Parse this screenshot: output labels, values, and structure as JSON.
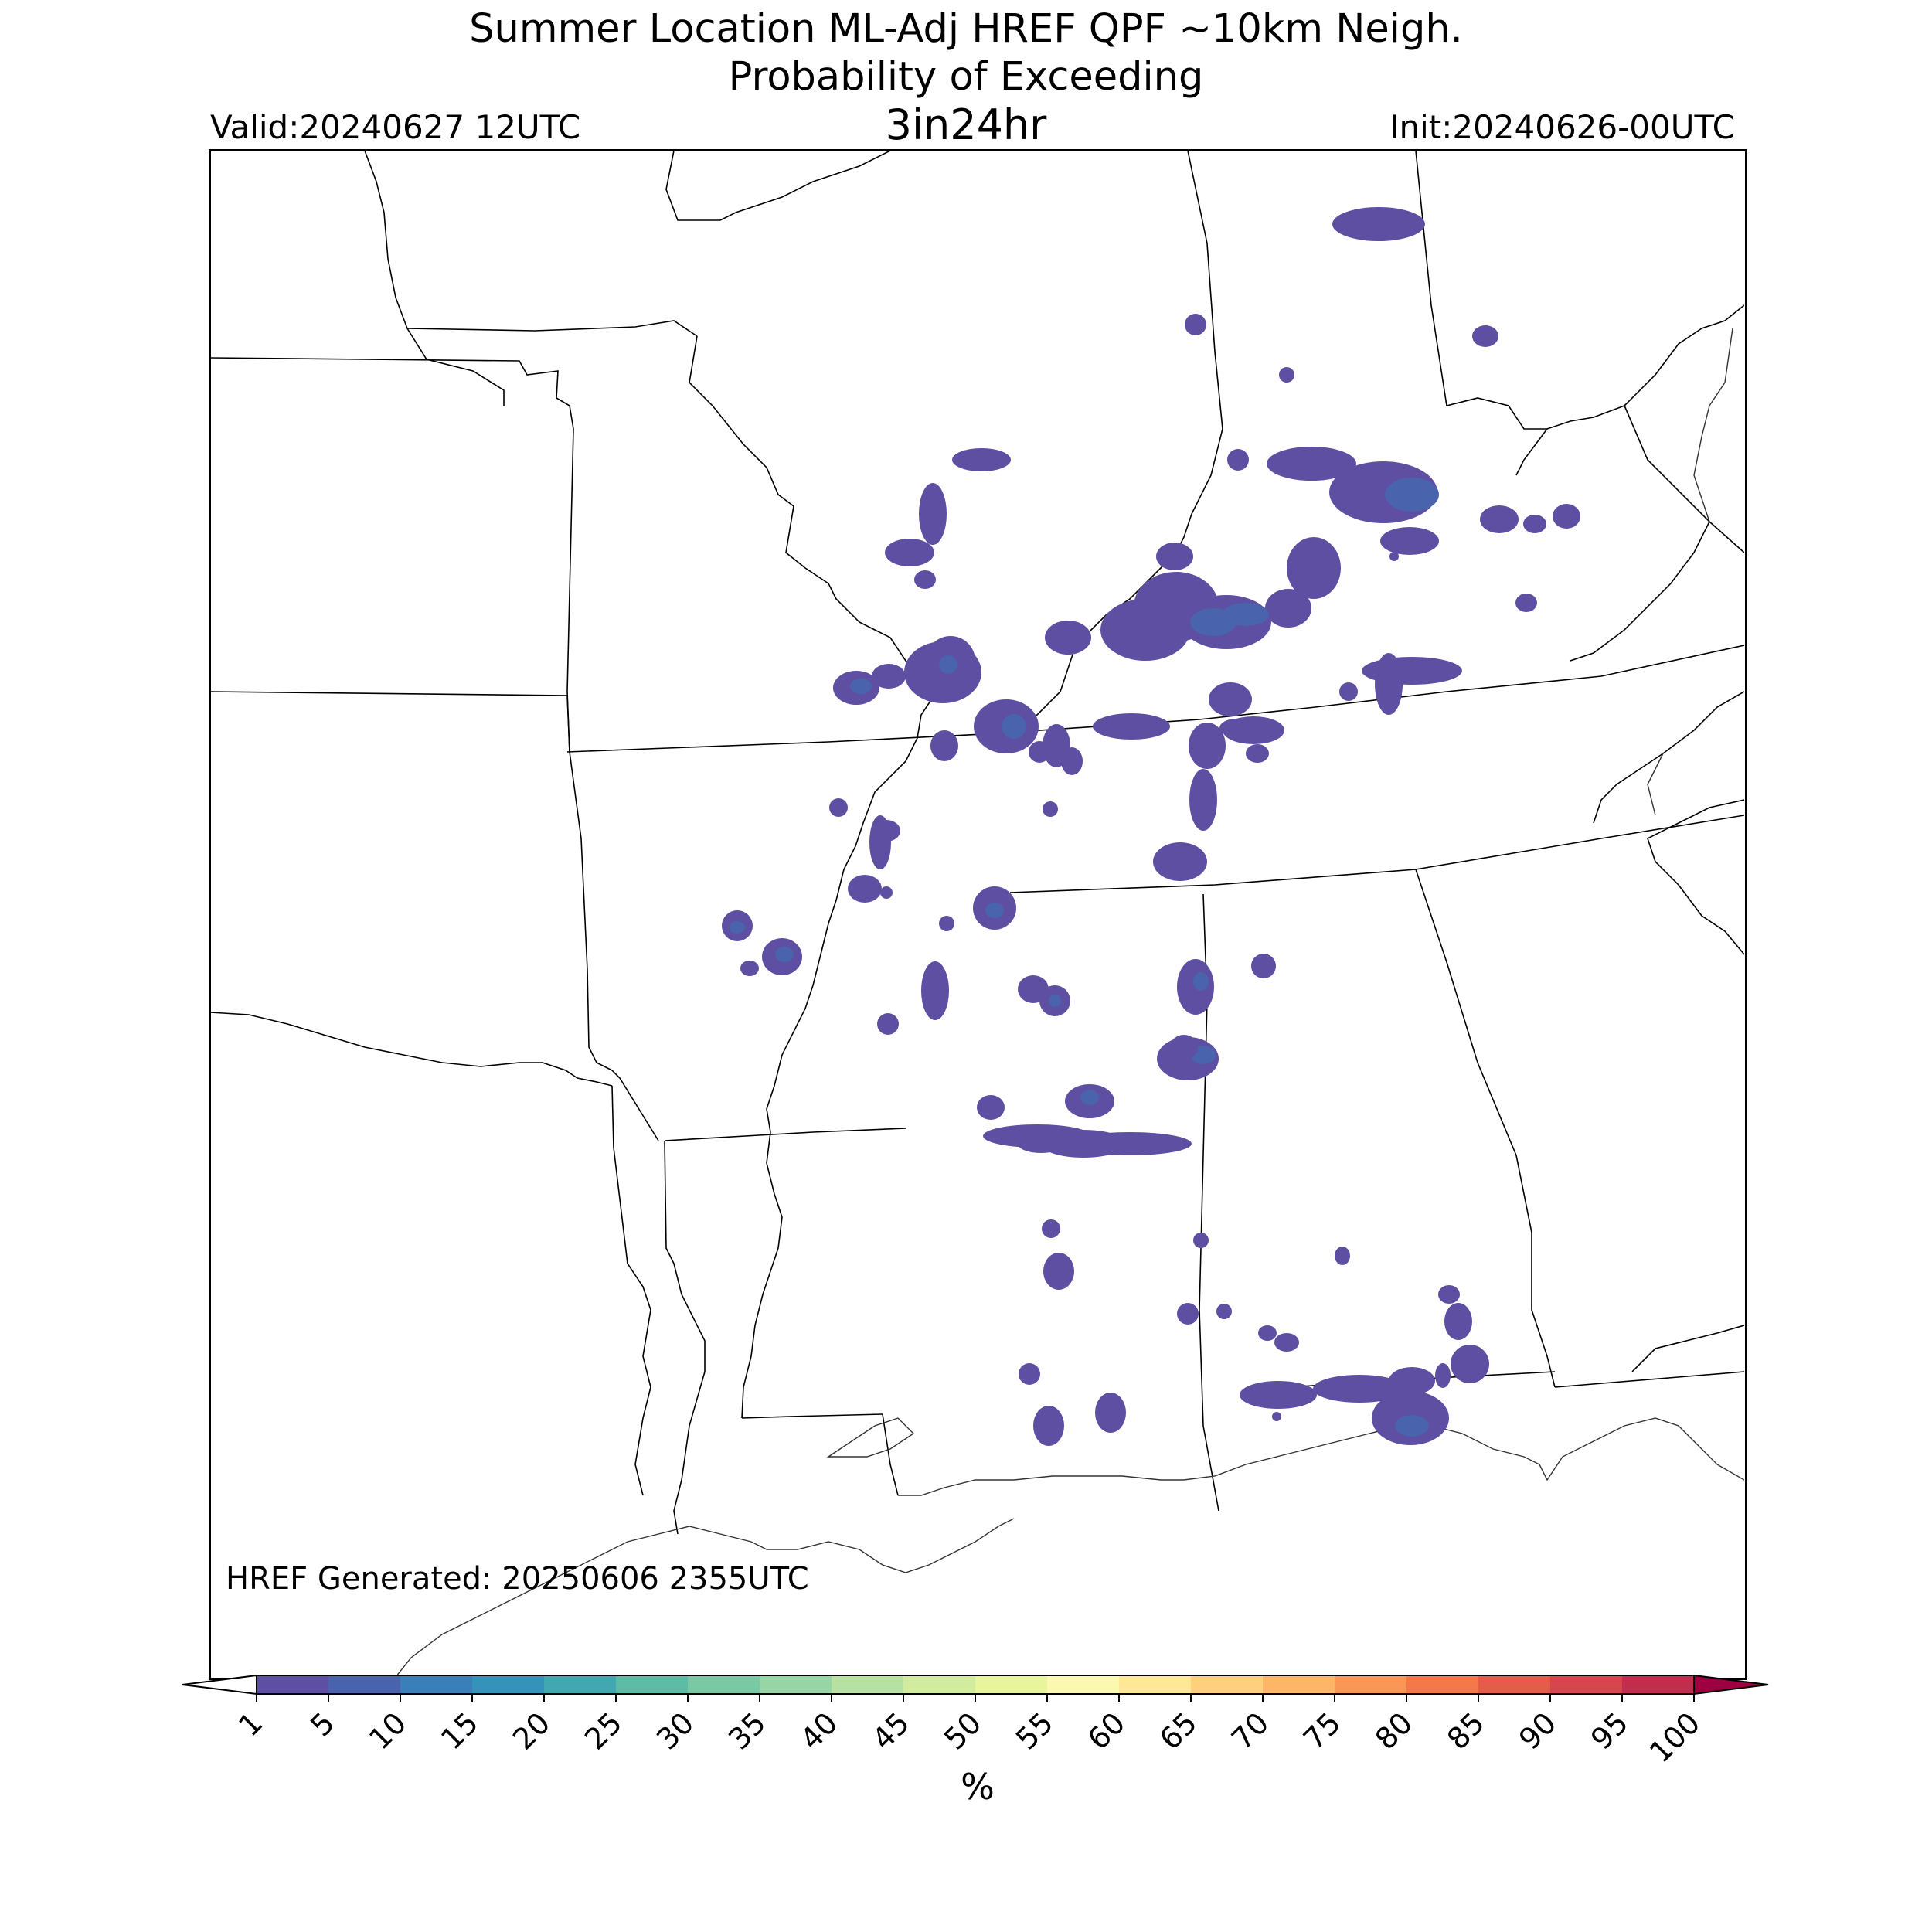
{
  "title": {
    "line1": "Summer Location ML-Adj HREF QPF ~10km Neigh.",
    "line2": "Probability of Exceeding",
    "line3": "3in24hr"
  },
  "valid_label": "Valid:20240627 12UTC",
  "init_label": "Init:20240626-00UTC",
  "generated_label": "HREF Generated: 20250606 2355UTC",
  "colorbar": {
    "unit": "%",
    "ticks": [
      "1",
      "5",
      "10",
      "15",
      "20",
      "25",
      "30",
      "35",
      "40",
      "45",
      "50",
      "55",
      "60",
      "65",
      "70",
      "75",
      "80",
      "85",
      "90",
      "95",
      "100"
    ],
    "colors": [
      "#5e4fa2",
      "#4a63ad",
      "#3a7fb8",
      "#3592b9",
      "#42a7b1",
      "#5cbca6",
      "#78c9a4",
      "#98d5a4",
      "#b6e1a2",
      "#d1ec9f",
      "#e8f59c",
      "#fbf8b0",
      "#fee797",
      "#fed07e",
      "#fdb567",
      "#fa9656",
      "#f47849",
      "#e65c4b",
      "#d7464e",
      "#c22d4d",
      "#9e0142"
    ],
    "extend_low_color": "#ffffff",
    "extend_high_color": "#9e0142"
  },
  "probability_colors": {
    "low": "#5e4fa2",
    "mid": "#4a63ad",
    "high": "#3a7fb8"
  }
}
